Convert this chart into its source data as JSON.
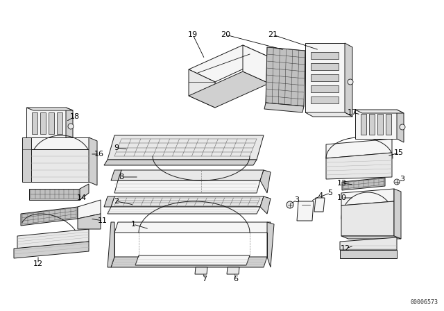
{
  "background_color": "#ffffff",
  "watermark": "00006573",
  "line_color": "#1a1a1a",
  "fill_light": "#f5f5f5",
  "fill_mid": "#e8e8e8",
  "fill_dark": "#d0d0d0",
  "fill_mesh": "#c0c0c0"
}
